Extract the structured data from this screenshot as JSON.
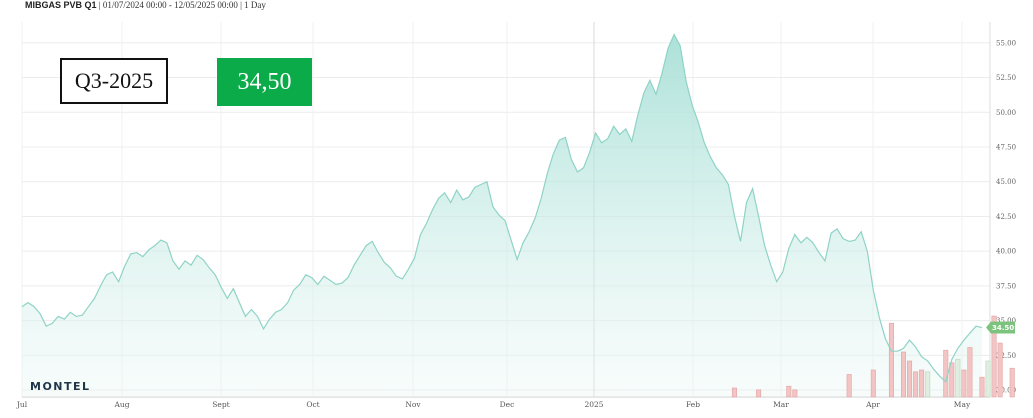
{
  "header": {
    "symbol": "MIBGAS PVB Q1",
    "range": " | 01/07/2024 00:00 - 12/05/2025 00:00 | 1 Day"
  },
  "badges": {
    "contract": "Q3-2025",
    "price": "34,50",
    "price_color": "#0bab4a"
  },
  "logo": "MONTEL",
  "chart_data": {
    "type": "area",
    "title": "MIBGAS PVB Q1",
    "x_months": [
      "Jul",
      "Aug",
      "Sept",
      "Oct",
      "Nov",
      "Dec",
      "2025",
      "Feb",
      "Mar",
      "Apr",
      "May"
    ],
    "ylim": [
      29.5,
      56.5
    ],
    "y_ticks": [
      "55.00",
      "52.50",
      "50.00",
      "47.50",
      "45.00",
      "42.50",
      "40.00",
      "37.50",
      "35.00",
      "32.50",
      "30.00"
    ],
    "last_value_label": "34.50",
    "series_values": [
      36.0,
      36.3,
      36.0,
      35.5,
      34.6,
      34.8,
      35.3,
      35.1,
      35.6,
      35.3,
      35.4,
      36.0,
      36.6,
      37.5,
      38.3,
      38.5,
      37.8,
      38.9,
      39.8,
      39.9,
      39.6,
      40.1,
      40.4,
      40.8,
      40.6,
      39.3,
      38.7,
      39.3,
      39.0,
      39.7,
      39.4,
      38.8,
      38.3,
      37.4,
      36.6,
      37.3,
      36.3,
      35.3,
      35.8,
      35.3,
      34.4,
      35.1,
      35.6,
      35.8,
      36.3,
      37.2,
      37.6,
      38.3,
      38.1,
      37.6,
      38.2,
      37.9,
      37.6,
      37.7,
      38.1,
      39.0,
      39.7,
      40.4,
      40.7,
      39.9,
      39.2,
      38.8,
      38.2,
      38.0,
      38.7,
      39.5,
      41.2,
      42.0,
      43.0,
      43.8,
      44.2,
      43.5,
      44.4,
      43.7,
      43.9,
      44.6,
      44.8,
      45.0,
      43.2,
      42.6,
      42.2,
      40.8,
      39.4,
      40.6,
      41.4,
      42.4,
      43.8,
      45.6,
      47.0,
      48.0,
      48.2,
      46.6,
      45.7,
      46.0,
      47.1,
      48.5,
      47.8,
      48.1,
      49.0,
      48.4,
      48.8,
      47.9,
      49.8,
      51.4,
      52.3,
      51.3,
      52.8,
      54.6,
      55.6,
      54.8,
      52.2,
      50.5,
      49.3,
      47.8,
      46.8,
      46.0,
      45.5,
      44.8,
      42.5,
      40.7,
      43.5,
      44.5,
      42.5,
      40.4,
      39.0,
      37.8,
      38.5,
      40.2,
      41.2,
      40.6,
      41.0,
      40.6,
      39.9,
      39.3,
      41.3,
      41.6,
      40.9,
      40.7,
      40.8,
      41.4,
      40.0,
      37.2,
      35.2,
      33.7,
      32.8,
      32.8,
      33.0,
      33.6,
      33.1,
      32.4,
      32.1,
      31.5,
      31.0,
      30.6,
      32.2,
      33.0,
      33.6,
      34.1,
      34.6,
      34.5
    ],
    "volume_bars_relative": [
      0,
      0,
      0,
      0,
      0,
      0,
      0,
      0,
      0,
      0,
      0,
      0,
      0,
      0,
      0,
      0,
      0,
      0,
      0,
      0,
      0,
      0,
      0,
      0,
      0,
      0,
      0,
      0,
      0,
      0,
      0,
      0,
      0,
      0,
      0,
      0,
      0,
      0,
      0,
      0,
      0,
      0,
      0,
      0,
      0,
      0,
      0,
      0,
      0,
      0,
      0,
      0,
      0,
      0,
      0,
      0,
      0,
      0,
      0,
      0,
      0,
      0,
      0,
      0,
      0,
      0,
      0,
      0,
      0,
      0,
      0,
      0,
      0,
      0,
      0,
      0,
      0,
      0,
      0,
      0,
      0,
      0,
      0,
      0,
      0,
      0,
      0,
      0,
      0,
      0,
      0,
      0,
      0,
      0,
      0,
      0,
      0,
      0,
      0,
      0,
      0,
      0,
      0,
      0,
      0,
      0,
      0,
      0,
      0,
      0,
      0,
      0,
      0,
      0,
      0,
      0,
      0,
      0,
      0.1,
      0,
      0,
      0,
      0.08,
      0,
      0,
      0,
      0,
      0.12,
      0.08,
      0,
      0,
      0,
      0,
      0,
      0,
      0,
      0,
      0.25,
      0,
      0,
      0,
      0.3,
      0,
      0,
      0.82,
      0,
      0.5,
      0.4,
      0.28,
      0.3,
      0.28,
      0,
      0,
      0.52,
      0.38,
      0.42,
      0.3,
      0.55,
      0,
      0.22,
      0.4,
      0.9,
      0.6,
      0,
      0.32
    ]
  }
}
